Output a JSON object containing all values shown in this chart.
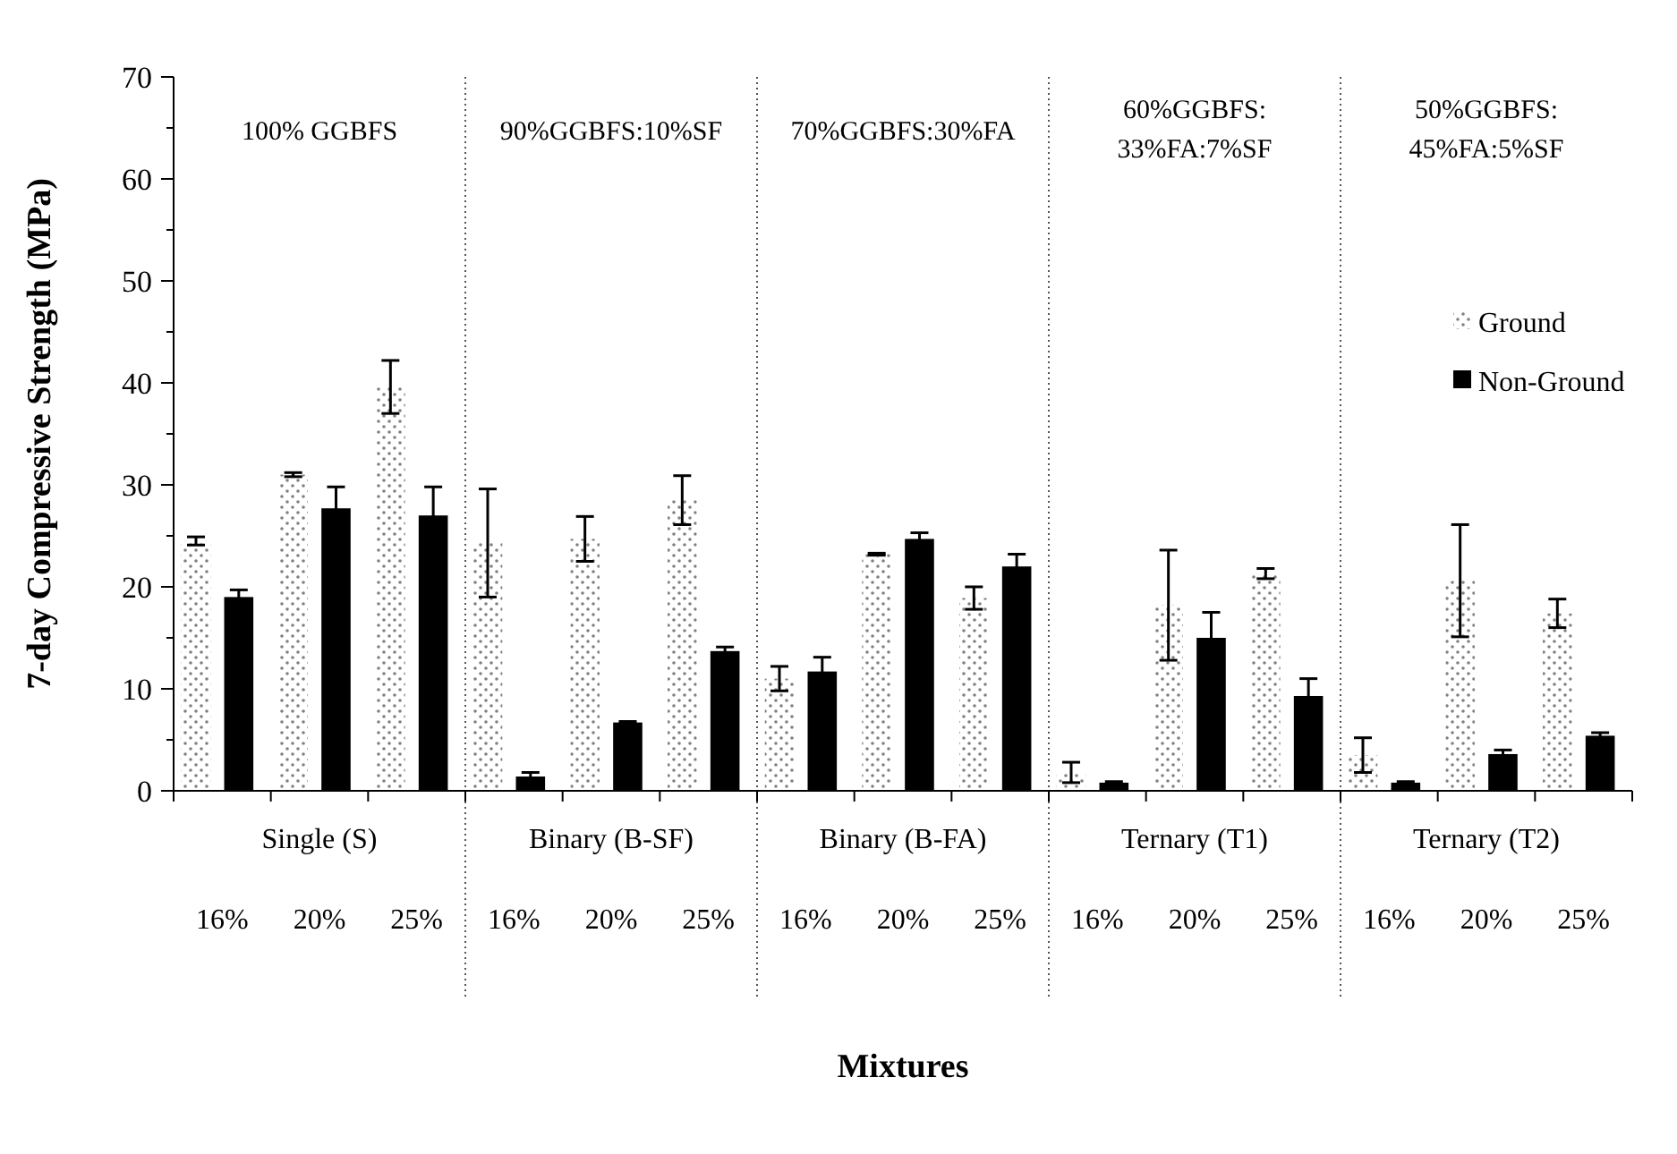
{
  "chart_data": {
    "type": "bar",
    "xlabel": "Mixtures",
    "ylabel": "7-day Compressive Strength (MPa)",
    "categories": [
      "16%",
      "20%",
      "25%",
      "16%",
      "20%",
      "25%",
      "16%",
      "20%",
      "25%",
      "16%",
      "20%",
      "25%",
      "16%",
      "20%",
      "25%"
    ],
    "series": [
      {
        "name": "Ground",
        "color": "#7f7f7f",
        "values": [
          24.5,
          31,
          39.6,
          24.3,
          24.7,
          28.5,
          11,
          23.2,
          18.9,
          1.8,
          18.2,
          21.3,
          3.5,
          20.6,
          17.4
        ],
        "errors": [
          0.4,
          0.2,
          2.6,
          5.3,
          2.2,
          2.4,
          1.2,
          0.1,
          1.1,
          1,
          5.4,
          0.5,
          1.7,
          5.5,
          1.4
        ]
      },
      {
        "name": "Non-Ground",
        "color": "#000000",
        "values": [
          19,
          27.7,
          27,
          1.4,
          6.7,
          13.7,
          11.7,
          24.7,
          22,
          0.8,
          15,
          9.3,
          0.8,
          3.6,
          5.4
        ],
        "errors": [
          0.7,
          2.1,
          2.8,
          0.4,
          0.1,
          0.4,
          1.4,
          0.6,
          1.2,
          0.1,
          2.5,
          1.7,
          0.1,
          0.4,
          0.3
        ]
      }
    ],
    "annotations": [
      "100% GGBFS",
      "90%GGBFS:10%SF",
      "70%GGBFS:30%FA",
      "60%GGBFS:\n33%FA:7%SF",
      "50%GGBFS:\n45%FA:5%SF",
      "Single  (S)",
      "Binary (B-SF)",
      "Binary (B-FA)",
      "Ternary (T1)",
      "Ternary (T2)"
    ],
    "ylim": [
      0,
      70
    ],
    "yticks": [
      0,
      {
        "value": 5,
        "label": null
      },
      10,
      {
        "value": 15,
        "label": null
      },
      20,
      {
        "value": 25,
        "label": null
      },
      30,
      {
        "value": 35,
        "label": null
      },
      40,
      {
        "value": 45,
        "label": null
      },
      50,
      {
        "value": 55,
        "label": null
      },
      60,
      {
        "value": 65,
        "label": null
      },
      70
    ],
    "grid": false,
    "legend": "right"
  }
}
